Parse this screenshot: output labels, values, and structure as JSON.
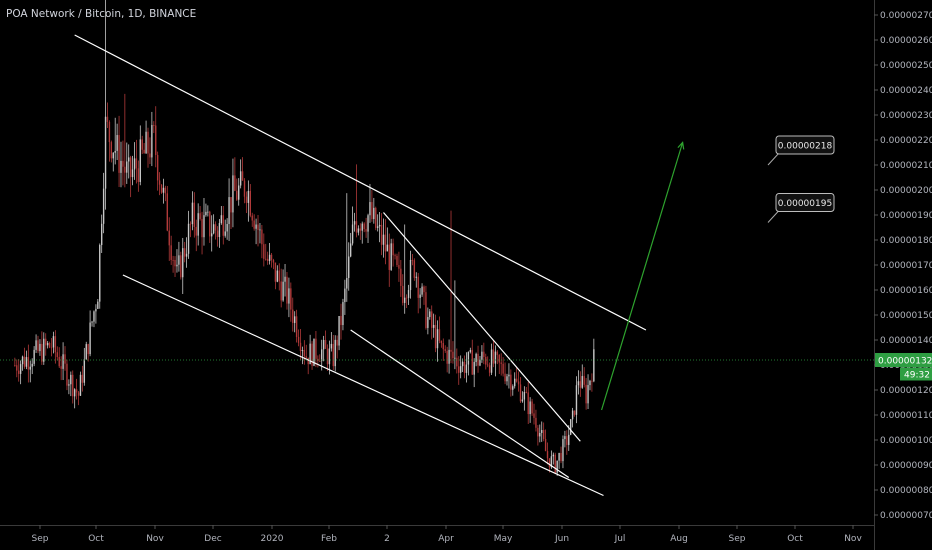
{
  "header": {
    "title": "POA Network / Bitcoin, 1D, BINANCE"
  },
  "colors": {
    "background": "#000000",
    "up": "#c8c8c8",
    "down": "#b23a3a",
    "trendline": "#ffffff",
    "projection_arrow": "#2ea32e",
    "price_badge": "#2e9e42",
    "grid": "#1a1a1a"
  },
  "chart_data": {
    "type": "candlestick",
    "symbol": "POA/BTC",
    "interval": "1D",
    "exchange": "BINANCE",
    "x_ticks": [
      "Sep",
      "Oct",
      "Nov",
      "Dec",
      "2020",
      "Feb",
      "2",
      "Apr",
      "May",
      "Jun",
      "Jul",
      "Aug",
      "Sep",
      "Oct",
      "Nov"
    ],
    "y_ticks": [
      "0.00000070",
      "0.00000080",
      "0.00000090",
      "0.00000100",
      "0.00000110",
      "0.00000120",
      "0.00000130",
      "0.00000140",
      "0.00000150",
      "0.00000160",
      "0.00000170",
      "0.00000180",
      "0.00000190",
      "0.00000200",
      "0.00000210",
      "0.00000220",
      "0.00000230",
      "0.00000240",
      "0.00000250",
      "0.00000260",
      "0.00000270"
    ],
    "ylim": [
      6.6e-07,
      2.76e-06
    ],
    "last_price": {
      "label": "0.00000132",
      "value": 1.32e-06,
      "countdown": "49:32"
    },
    "price_labels": [
      {
        "text": "0.00000218",
        "value": 2.18e-06
      },
      {
        "text": "0.00000195",
        "value": 1.95e-06
      }
    ],
    "series_anchors": [
      {
        "date": "2019-08-20",
        "price": 1.3e-06
      },
      {
        "date": "2019-09-08",
        "price": 1.38e-06
      },
      {
        "date": "2019-09-22",
        "price": 1.18e-06
      },
      {
        "date": "2019-10-02",
        "price": 1.6e-06
      },
      {
        "date": "2019-10-06",
        "price": 2.25e-06
      },
      {
        "date": "2019-10-18",
        "price": 2.05e-06
      },
      {
        "date": "2019-10-31",
        "price": 2.2e-06
      },
      {
        "date": "2019-11-12",
        "price": 1.65e-06
      },
      {
        "date": "2019-11-20",
        "price": 1.88e-06
      },
      {
        "date": "2019-12-03",
        "price": 1.84e-06
      },
      {
        "date": "2019-12-11",
        "price": 1.98e-06
      },
      {
        "date": "2019-12-18",
        "price": 2.02e-06
      },
      {
        "date": "2019-12-28",
        "price": 1.73e-06
      },
      {
        "date": "2020-01-08",
        "price": 1.58e-06
      },
      {
        "date": "2020-01-18",
        "price": 1.34e-06
      },
      {
        "date": "2020-01-25",
        "price": 1.36e-06
      },
      {
        "date": "2020-02-01",
        "price": 1.33e-06
      },
      {
        "date": "2020-02-06",
        "price": 1.52e-06
      },
      {
        "date": "2020-02-12",
        "price": 1.88e-06
      },
      {
        "date": "2020-02-20",
        "price": 1.9e-06
      },
      {
        "date": "2020-03-02",
        "price": 1.72e-06
      },
      {
        "date": "2020-03-08",
        "price": 1.6e-06
      },
      {
        "date": "2020-03-14",
        "price": 1.7e-06
      },
      {
        "date": "2020-03-20",
        "price": 1.5e-06
      },
      {
        "date": "2020-03-28",
        "price": 1.36e-06
      },
      {
        "date": "2020-04-08",
        "price": 1.3e-06
      },
      {
        "date": "2020-04-20",
        "price": 1.33e-06
      },
      {
        "date": "2020-05-01",
        "price": 1.27e-06
      },
      {
        "date": "2020-05-08",
        "price": 1.2e-06
      },
      {
        "date": "2020-05-16",
        "price": 1.08e-06
      },
      {
        "date": "2020-05-22",
        "price": 9.3e-07
      },
      {
        "date": "2020-05-26",
        "price": 9e-07
      },
      {
        "date": "2020-06-01",
        "price": 1e-06
      },
      {
        "date": "2020-06-04",
        "price": 1.08e-06
      },
      {
        "date": "2020-06-07",
        "price": 1.25e-06
      },
      {
        "date": "2020-06-11",
        "price": 1.18e-06
      },
      {
        "date": "2020-06-15",
        "price": 1.32e-06
      }
    ],
    "trendlines": [
      {
        "name": "upper-channel",
        "from": {
          "date": "2019-09-20",
          "price": 2.62e-06
        },
        "to": {
          "date": "2020-07-12",
          "price": 1.44e-06
        }
      },
      {
        "name": "lower-channel",
        "from": {
          "date": "2019-10-15",
          "price": 1.66e-06
        },
        "to": {
          "date": "2020-06-20",
          "price": 7.78e-07
        }
      },
      {
        "name": "wedge-upper",
        "from": {
          "date": "2020-02-27",
          "price": 1.91e-06
        },
        "to": {
          "date": "2020-06-08",
          "price": 9.95e-07
        }
      },
      {
        "name": "wedge-lower",
        "from": {
          "date": "2020-02-10",
          "price": 1.44e-06
        },
        "to": {
          "date": "2020-06-02",
          "price": 8.5e-07
        }
      }
    ],
    "projection_arrow": {
      "from": {
        "date": "2020-06-19",
        "price": 1.12e-06
      },
      "to": {
        "date": "2020-07-31",
        "price": 2.19e-06
      }
    },
    "grid": false,
    "legend": "none"
  }
}
